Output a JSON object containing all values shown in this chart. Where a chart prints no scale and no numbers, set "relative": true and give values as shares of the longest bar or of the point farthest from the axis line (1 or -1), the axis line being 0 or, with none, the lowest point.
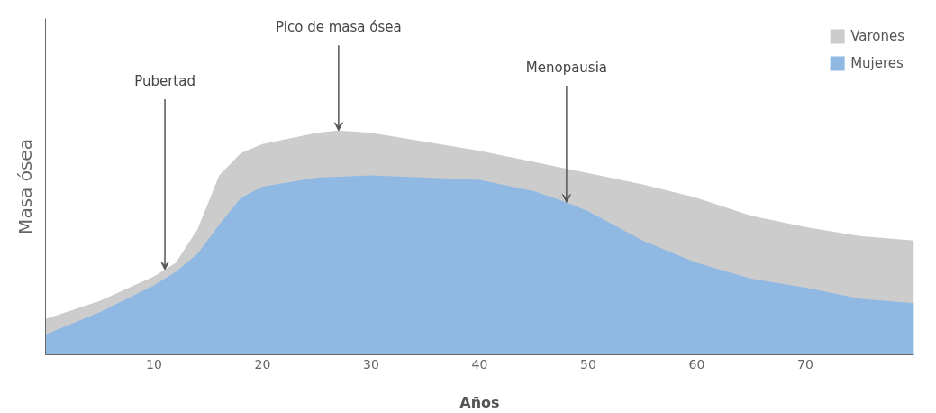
{
  "chart_data": {
    "type": "area",
    "relative": true,
    "xlabel": "Años",
    "ylabel": "Masa ósea",
    "xlim": [
      0,
      80
    ],
    "xticks": [
      10,
      20,
      30,
      40,
      50,
      60,
      70
    ],
    "grid": false,
    "legend": "top right",
    "series": [
      {
        "name": "Varones",
        "color": "#cccccc",
        "x": [
          0,
          5,
          10,
          12,
          14,
          15,
          16,
          18,
          20,
          25,
          27,
          30,
          40,
          50,
          55,
          60,
          65,
          70,
          75,
          80
        ],
        "values": [
          0.16,
          0.24,
          0.35,
          0.41,
          0.56,
          0.68,
          0.8,
          0.9,
          0.94,
          0.99,
          1.0,
          0.99,
          0.91,
          0.81,
          0.76,
          0.7,
          0.62,
          0.57,
          0.53,
          0.51
        ]
      },
      {
        "name": "Mujeres",
        "color": "#8fb8e3",
        "x": [
          0,
          5,
          10,
          12,
          14,
          16,
          18,
          20,
          25,
          30,
          40,
          45,
          48,
          50,
          55,
          60,
          65,
          70,
          75,
          80
        ],
        "values": [
          0.09,
          0.19,
          0.31,
          0.37,
          0.45,
          0.58,
          0.7,
          0.75,
          0.79,
          0.8,
          0.78,
          0.73,
          0.68,
          0.64,
          0.51,
          0.41,
          0.34,
          0.3,
          0.25,
          0.23
        ]
      }
    ],
    "annotations": [
      {
        "text": "Pubertad",
        "x": 11,
        "y": 0.38
      },
      {
        "text": "Pico de masa ósea",
        "x": 27,
        "y": 1.0
      },
      {
        "text": "Menopausia",
        "x": 48,
        "y": 0.68
      }
    ]
  }
}
